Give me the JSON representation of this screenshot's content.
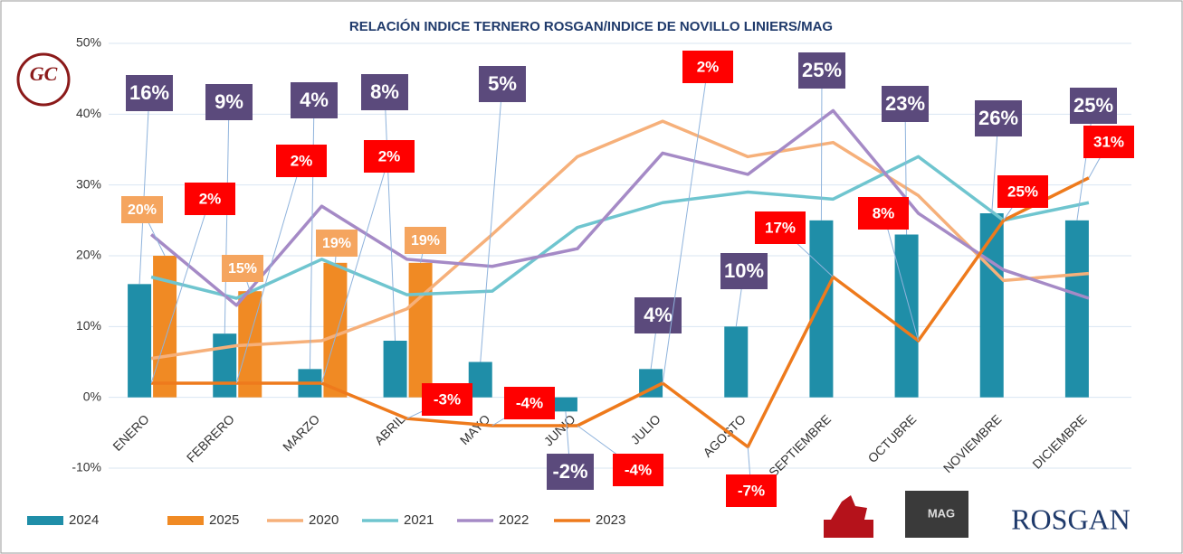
{
  "chart_data": {
    "type": "bar_line",
    "title": "RELACIÓN INDICE TERNERO ROSGAN/INDICE DE NOVILLO LINIERS/MAG",
    "categories": [
      "ENERO",
      "FEBRERO",
      "MARZO",
      "ABRIL",
      "MAYO",
      "JUNIO",
      "JULIO",
      "AGOSTO",
      "SEPTIEMBRE",
      "OCTUBRE",
      "NOVIEMBRE",
      "DICIEMBRE"
    ],
    "ylim": [
      -10,
      50
    ],
    "yticks": [
      {
        "value": -10,
        "label": "-10%"
      },
      {
        "value": 0,
        "label": "0%"
      },
      {
        "value": 10,
        "label": "10%"
      },
      {
        "value": 20,
        "label": "20%"
      },
      {
        "value": 30,
        "label": "30%"
      },
      {
        "value": 40,
        "label": "40%"
      },
      {
        "value": 50,
        "label": "50%"
      }
    ],
    "grid": true,
    "legend": "bottom",
    "series": [
      {
        "name": "2024",
        "kind": "bar",
        "color": "#1f8ea8",
        "values": [
          16,
          9,
          4,
          8,
          5,
          -2,
          4,
          10,
          25,
          23,
          26,
          25
        ],
        "value_labels": [
          "16%",
          "9%",
          "4%",
          "8%",
          "5%",
          "-2%",
          "4%",
          "10%",
          "25%",
          "23%",
          "26%",
          "25%"
        ],
        "label_color": "#5b4a7c"
      },
      {
        "name": "2025",
        "kind": "bar",
        "color": "#f08a24",
        "values": [
          20,
          15,
          19,
          19,
          null,
          null,
          null,
          null,
          null,
          null,
          null,
          null
        ],
        "value_labels": [
          "20%",
          "15%",
          "19%",
          "19%",
          null,
          null,
          null,
          null,
          null,
          null,
          null,
          null
        ],
        "label_color": "#f5a55f"
      },
      {
        "name": "2020",
        "kind": "line",
        "color": "#f6b07a",
        "values": [
          5.5,
          7.3,
          8,
          12.5,
          23,
          34,
          39,
          34,
          36,
          28.5,
          16.5,
          17.5
        ]
      },
      {
        "name": "2021",
        "kind": "line",
        "color": "#6fc5cf",
        "values": [
          17,
          14,
          19.5,
          14.5,
          15,
          24,
          27.5,
          29,
          28,
          34,
          25,
          27.5
        ]
      },
      {
        "name": "2022",
        "kind": "line",
        "color": "#a58ac6",
        "values": [
          23,
          13,
          27,
          19.5,
          18.5,
          21,
          34.5,
          31.5,
          40.5,
          26,
          18,
          14
        ]
      },
      {
        "name": "2023",
        "kind": "line",
        "color": "#ee7a1c",
        "values": [
          2,
          2,
          2,
          -3,
          -4,
          -4,
          2,
          -7,
          17,
          8,
          25,
          31
        ],
        "value_labels": [
          "2%",
          "2%",
          "2%",
          "-3%",
          "-4%",
          "-4%",
          "2%",
          "-7%",
          "17%",
          "8%",
          "25%",
          "31%"
        ],
        "label_color": "#ff0000"
      }
    ]
  },
  "logos": {
    "left": "GC",
    "middle": "MAG",
    "right": "ROSGAN"
  }
}
